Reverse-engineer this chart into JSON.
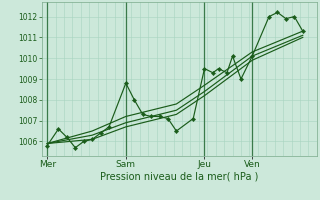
{
  "background_color": "#cce8da",
  "grid_color": "#a8d4c0",
  "line_color": "#1a5c1a",
  "xlabel": "Pression niveau de la mer( hPa )",
  "ylim": [
    1005.3,
    1012.7
  ],
  "yticks": [
    1006,
    1007,
    1008,
    1009,
    1010,
    1011,
    1012
  ],
  "day_labels": [
    "Mer",
    "Sam",
    "Jeu",
    "Ven"
  ],
  "day_positions": [
    0,
    28,
    56,
    73
  ],
  "vline_color": "#3a7a4a",
  "series1_x": [
    0,
    4,
    7,
    10,
    13,
    16,
    19,
    22,
    28,
    31,
    34,
    37,
    40,
    43,
    46,
    52,
    56,
    59,
    61,
    64,
    66,
    69,
    73,
    79,
    82,
    85,
    88,
    91
  ],
  "series1_y": [
    1005.8,
    1006.6,
    1006.2,
    1005.7,
    1006.0,
    1006.1,
    1006.4,
    1006.7,
    1008.8,
    1008.0,
    1007.3,
    1007.2,
    1007.2,
    1007.1,
    1006.5,
    1007.1,
    1009.5,
    1009.3,
    1009.5,
    1009.3,
    1010.1,
    1009.0,
    1010.1,
    1012.0,
    1012.2,
    1011.9,
    1012.0,
    1011.3
  ],
  "series2_x": [
    0,
    16,
    28,
    46,
    56,
    73,
    91
  ],
  "series2_y": [
    1005.9,
    1006.5,
    1007.2,
    1007.8,
    1008.7,
    1010.3,
    1011.3
  ],
  "series3_x": [
    0,
    16,
    28,
    46,
    56,
    73,
    91
  ],
  "series3_y": [
    1005.9,
    1006.3,
    1006.9,
    1007.5,
    1008.4,
    1010.1,
    1011.1
  ],
  "series4_x": [
    0,
    16,
    28,
    46,
    56,
    73,
    91
  ],
  "series4_y": [
    1005.9,
    1006.1,
    1006.7,
    1007.3,
    1008.2,
    1009.9,
    1011.0
  ]
}
